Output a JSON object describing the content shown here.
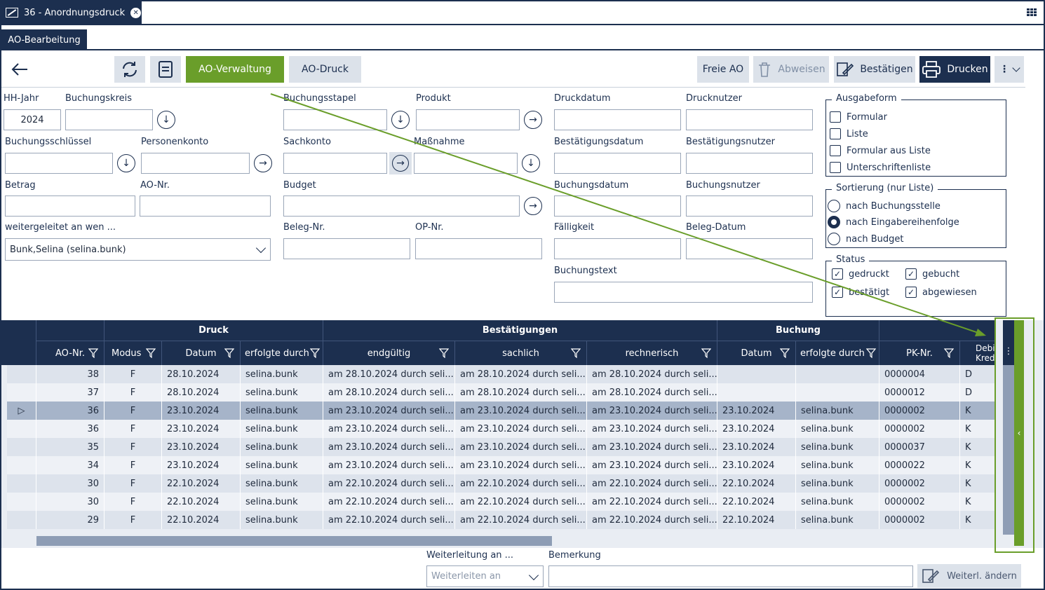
{
  "window": {
    "tab_title": "36 - Anordnungsdruck",
    "section_tab": "AO-Bearbeitung"
  },
  "toolbar": {
    "ao_verwaltung": "AO-Verwaltung",
    "ao_druck": "AO-Druck",
    "freie_ao": "Freie AO",
    "abweisen": "Abweisen",
    "bestaetigen": "Bestätigen",
    "drucken": "Drucken"
  },
  "form": {
    "hh_jahr": {
      "label": "HH-Jahr",
      "value": "2024"
    },
    "buchungskreis": {
      "label": "Buchungskreis",
      "value": ""
    },
    "buchungsschluessel": {
      "label": "Buchungsschlüssel",
      "value": ""
    },
    "personenkonto": {
      "label": "Personenkonto",
      "value": ""
    },
    "betrag": {
      "label": "Betrag",
      "value": ""
    },
    "ao_nr": {
      "label": "AO-Nr.",
      "value": ""
    },
    "weitergeleitet": {
      "label": "weitergeleitet an wen ...",
      "value": "Bunk,Selina (selina.bunk)"
    },
    "buchungsstapel": {
      "label": "Buchungsstapel",
      "value": ""
    },
    "produkt": {
      "label": "Produkt",
      "value": ""
    },
    "sachkonto": {
      "label": "Sachkonto",
      "value": ""
    },
    "massnahme": {
      "label": "Maßnahme",
      "value": ""
    },
    "budget": {
      "label": "Budget",
      "value": ""
    },
    "beleg_nr": {
      "label": "Beleg-Nr.",
      "value": ""
    },
    "op_nr": {
      "label": "OP-Nr.",
      "value": ""
    },
    "druckdatum": {
      "label": "Druckdatum",
      "value": ""
    },
    "drucknutzer": {
      "label": "Drucknutzer",
      "value": ""
    },
    "bestaetigungsdatum": {
      "label": "Bestätigungsdatum",
      "value": ""
    },
    "bestaetigungsnutzer": {
      "label": "Bestätigungsnutzer",
      "value": ""
    },
    "buchungsdatum": {
      "label": "Buchungsdatum",
      "value": ""
    },
    "buchungsnutzer": {
      "label": "Buchungsnutzer",
      "value": ""
    },
    "faelligkeit": {
      "label": "Fälligkeit",
      "value": ""
    },
    "beleg_datum": {
      "label": "Beleg-Datum",
      "value": ""
    },
    "buchungstext": {
      "label": "Buchungstext",
      "value": ""
    }
  },
  "ausgabeform": {
    "title": "Ausgabeform",
    "options": [
      "Formular",
      "Liste",
      "Formular aus Liste",
      "Unterschriftenliste"
    ]
  },
  "sortierung": {
    "title": "Sortierung (nur Liste)",
    "options": [
      "nach Buchungsstelle",
      "nach Eingabereihenfolge",
      "nach Budget"
    ],
    "selected": "nach Eingabereihenfolge"
  },
  "status": {
    "title": "Status",
    "options": [
      "gedruckt",
      "gebucht",
      "bestätigt",
      "abgewiesen"
    ]
  },
  "table": {
    "groups": {
      "druck": "Druck",
      "bestaetigungen": "Bestätigungen",
      "buchung": "Buchung"
    },
    "columns": {
      "ao_nr": "AO-Nr.",
      "modus": "Modus",
      "druck_datum": "Datum",
      "druck_durch": "erfolgte durch",
      "endgueltig": "endgültig",
      "sachlich": "sachlich",
      "rechnerisch": "rechnerisch",
      "buchung_datum": "Datum",
      "buchung_durch": "erfolgte durch",
      "pk_nr": "PK-Nr.",
      "debitor": "Debitor/ Kreditor"
    },
    "rows": [
      {
        "ao": "38",
        "modus": "F",
        "datum": "28.10.2024",
        "durch": "selina.bunk",
        "end": "am 28.10.2024 durch seli...",
        "sach": "am 28.10.2024 durch seli...",
        "rech": "am 28.10.2024 durch seli...",
        "bdatum": "",
        "bdurch": "",
        "pk": "0000004",
        "dk": "D"
      },
      {
        "ao": "37",
        "modus": "F",
        "datum": "28.10.2024",
        "durch": "selina.bunk",
        "end": "am 28.10.2024 durch seli...",
        "sach": "am 28.10.2024 durch seli...",
        "rech": "am 28.10.2024 durch seli...",
        "bdatum": "",
        "bdurch": "",
        "pk": "0000012",
        "dk": "D"
      },
      {
        "ao": "36",
        "modus": "F",
        "datum": "23.10.2024",
        "durch": "selina.bunk",
        "end": "am 23.10.2024 durch seli...",
        "sach": "am 23.10.2024 durch seli...",
        "rech": "am 23.10.2024 durch seli...",
        "bdatum": "23.10.2024",
        "bdurch": "selina.bunk",
        "pk": "0000002",
        "dk": "K"
      },
      {
        "ao": "36",
        "modus": "F",
        "datum": "23.10.2024",
        "durch": "selina.bunk",
        "end": "am 23.10.2024 durch seli...",
        "sach": "am 23.10.2024 durch seli...",
        "rech": "am 23.10.2024 durch seli...",
        "bdatum": "23.10.2024",
        "bdurch": "selina.bunk",
        "pk": "0000002",
        "dk": "K"
      },
      {
        "ao": "35",
        "modus": "F",
        "datum": "23.10.2024",
        "durch": "selina.bunk",
        "end": "am 23.10.2024 durch seli...",
        "sach": "am 23.10.2024 durch seli...",
        "rech": "am 23.10.2024 durch seli...",
        "bdatum": "23.10.2024",
        "bdurch": "selina.bunk",
        "pk": "0000037",
        "dk": "K"
      },
      {
        "ao": "34",
        "modus": "F",
        "datum": "23.10.2024",
        "durch": "selina.bunk",
        "end": "am 23.10.2024 durch seli...",
        "sach": "am 23.10.2024 durch seli...",
        "rech": "am 23.10.2024 durch seli...",
        "bdatum": "23.10.2024",
        "bdurch": "selina.bunk",
        "pk": "0000022",
        "dk": "K"
      },
      {
        "ao": "30",
        "modus": "F",
        "datum": "22.10.2024",
        "durch": "selina.bunk",
        "end": "am 22.10.2024 durch seli...",
        "sach": "am 22.10.2024 durch seli...",
        "rech": "am 22.10.2024 durch seli...",
        "bdatum": "22.10.2024",
        "bdurch": "selina.bunk",
        "pk": "0000002",
        "dk": "K"
      },
      {
        "ao": "30",
        "modus": "F",
        "datum": "22.10.2024",
        "durch": "selina.bunk",
        "end": "am 22.10.2024 durch seli...",
        "sach": "am 22.10.2024 durch seli...",
        "rech": "am 22.10.2024 durch seli...",
        "bdatum": "22.10.2024",
        "bdurch": "selina.bunk",
        "pk": "0000002",
        "dk": "K"
      },
      {
        "ao": "29",
        "modus": "F",
        "datum": "22.10.2024",
        "durch": "selina.bunk",
        "end": "am 22.10.2024 durch seli...",
        "sach": "am 22.10.2024 durch seli...",
        "rech": "am 22.10.2024 durch seli...",
        "bdatum": "22.10.2024",
        "bdurch": "selina.bunk",
        "pk": "0000002",
        "dk": "K"
      }
    ],
    "selected_row": 2
  },
  "bottom": {
    "weiterleitung_label": "Weiterleitung an ...",
    "weiterleitung_placeholder": "Weiterleiten an",
    "bemerkung_label": "Bemerkung",
    "bemerkung_value": "",
    "weiterl_aendern": "Weiterl. ändern"
  },
  "colors": {
    "navy": "#1c2f4f",
    "accent_green": "#6a9e2a",
    "row_selected": "#a6b4c9"
  }
}
